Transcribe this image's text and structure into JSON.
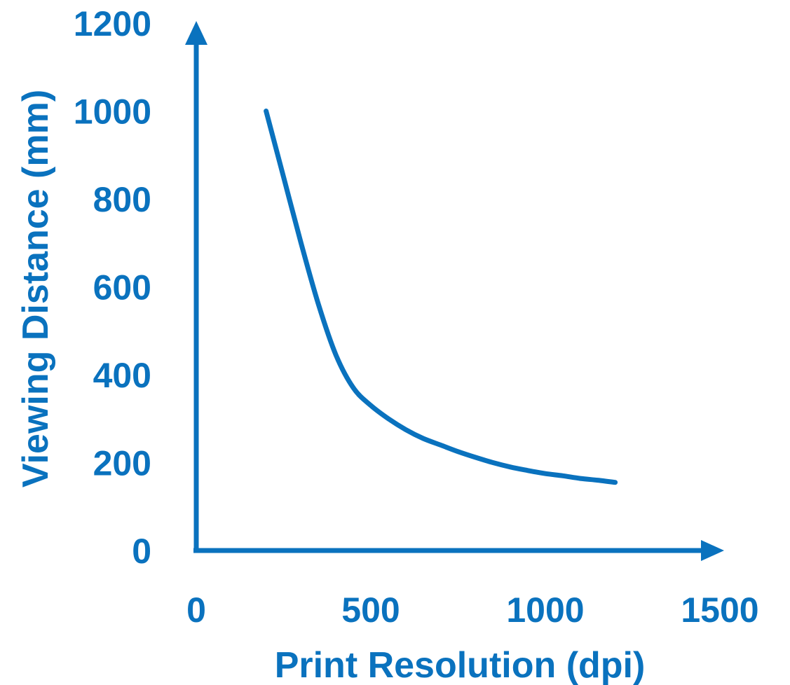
{
  "chart_data": {
    "type": "line",
    "title": "",
    "xlabel": "Print Resolution (dpi)",
    "ylabel": "Viewing Distance (mm)",
    "xlim": [
      0,
      1500
    ],
    "ylim": [
      0,
      1200
    ],
    "x_ticks": [
      0,
      500,
      1000,
      1500
    ],
    "y_ticks": [
      0,
      200,
      400,
      600,
      800,
      1000,
      1200
    ],
    "grid": false,
    "legend": "none",
    "color": "#0a72be",
    "series": [
      {
        "x": [
          200,
          250,
          300,
          350,
          400,
          450,
          500,
          550,
          600,
          650,
          700,
          750,
          800,
          850,
          900,
          950,
          1000,
          1050,
          1100,
          1150,
          1200
        ],
        "y": [
          1000,
          850,
          700,
          560,
          445,
          370,
          330,
          300,
          275,
          255,
          240,
          225,
          212,
          200,
          190,
          182,
          175,
          170,
          164,
          160,
          155
        ]
      }
    ]
  }
}
